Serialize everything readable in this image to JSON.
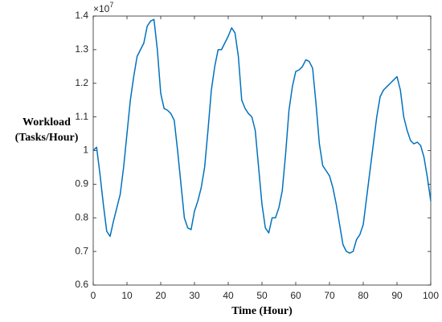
{
  "chart_data": {
    "type": "line",
    "x_label": "Time (Hour)",
    "y_label": [
      "Workload",
      "(Tasks/Hour)"
    ],
    "y_multiplier": {
      "base": "×10",
      "power": "7"
    },
    "x": [
      0,
      1,
      2,
      3,
      4,
      5,
      6,
      7,
      8,
      9,
      10,
      11,
      12,
      13,
      14,
      15,
      16,
      17,
      18,
      19,
      20,
      21,
      22,
      23,
      24,
      25,
      26,
      27,
      28,
      29,
      30,
      31,
      32,
      33,
      34,
      35,
      36,
      37,
      38,
      39,
      40,
      41,
      42,
      43,
      44,
      45,
      46,
      47,
      48,
      49,
      50,
      51,
      52,
      53,
      54,
      55,
      56,
      57,
      58,
      59,
      60,
      61,
      62,
      63,
      64,
      65,
      66,
      67,
      68,
      69,
      70,
      71,
      72,
      73,
      74,
      75,
      76,
      77,
      78,
      79,
      80,
      81,
      82,
      83,
      84,
      85,
      86,
      87,
      88,
      89,
      90,
      91,
      92,
      93,
      94,
      95,
      96,
      97,
      98,
      99,
      100
    ],
    "series": [
      {
        "color": "#0072bd",
        "values": [
          1.0,
          1.01,
          0.93,
          0.84,
          0.76,
          0.745,
          0.79,
          0.83,
          0.87,
          0.95,
          1.05,
          1.15,
          1.22,
          1.28,
          1.3,
          1.32,
          1.37,
          1.385,
          1.39,
          1.3,
          1.17,
          1.125,
          1.12,
          1.11,
          1.09,
          1.0,
          0.9,
          0.8,
          0.77,
          0.765,
          0.82,
          0.85,
          0.89,
          0.95,
          1.06,
          1.18,
          1.25,
          1.3,
          1.3,
          1.32,
          1.34,
          1.365,
          1.35,
          1.28,
          1.15,
          1.125,
          1.11,
          1.1,
          1.06,
          0.95,
          0.84,
          0.77,
          0.755,
          0.8,
          0.8,
          0.83,
          0.88,
          0.99,
          1.12,
          1.19,
          1.235,
          1.24,
          1.25,
          1.27,
          1.265,
          1.245,
          1.14,
          1.02,
          0.955,
          0.94,
          0.925,
          0.89,
          0.84,
          0.78,
          0.72,
          0.7,
          0.695,
          0.7,
          0.735,
          0.75,
          0.78,
          0.86,
          0.94,
          1.02,
          1.1,
          1.16,
          1.18,
          1.19,
          1.2,
          1.21,
          1.22,
          1.18,
          1.1,
          1.06,
          1.03,
          1.02,
          1.025,
          1.015,
          0.98,
          0.92,
          0.85
        ]
      }
    ],
    "xlim": [
      0,
      100
    ],
    "xticks": [
      0,
      10,
      20,
      30,
      40,
      50,
      60,
      70,
      80,
      90,
      100
    ],
    "ylim": [
      0.6,
      1.4
    ],
    "yticks": [
      0.6,
      0.7,
      0.8,
      0.9,
      1,
      1.1,
      1.2,
      1.3,
      1.4
    ]
  }
}
